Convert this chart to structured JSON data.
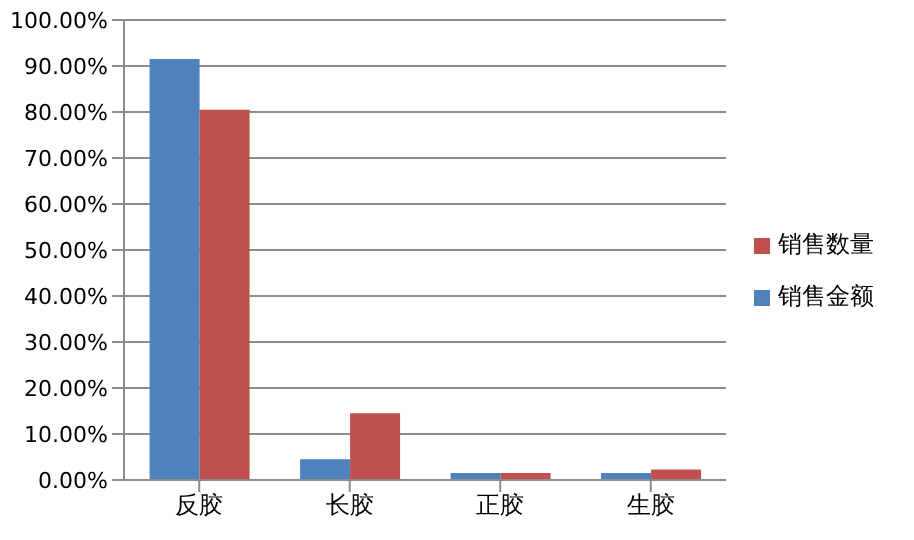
{
  "chart_data": {
    "type": "bar",
    "categories": [
      "反胶",
      "长胶",
      "正胶",
      "生胶"
    ],
    "series": [
      {
        "name": "销售金额",
        "color": "#4f81bd",
        "values": [
          91.5,
          4.5,
          1.5,
          1.5
        ]
      },
      {
        "name": "销售数量",
        "color": "#c0504d",
        "values": [
          80.5,
          14.5,
          1.5,
          2.3
        ]
      }
    ],
    "ylim": [
      0,
      100
    ],
    "yticks": [
      {
        "value": 0,
        "label": "0.00%"
      },
      {
        "value": 10,
        "label": "10.00%"
      },
      {
        "value": 20,
        "label": "20.00%"
      },
      {
        "value": 30,
        "label": "30.00%"
      },
      {
        "value": 40,
        "label": "40.00%"
      },
      {
        "value": 50,
        "label": "50.00%"
      },
      {
        "value": 60,
        "label": "60.00%"
      },
      {
        "value": 70,
        "label": "70.00%"
      },
      {
        "value": 80,
        "label": "80.00%"
      },
      {
        "value": 90,
        "label": "90.00%"
      },
      {
        "value": 100,
        "label": "100.00%"
      }
    ],
    "grid": "y",
    "legend": "right"
  }
}
